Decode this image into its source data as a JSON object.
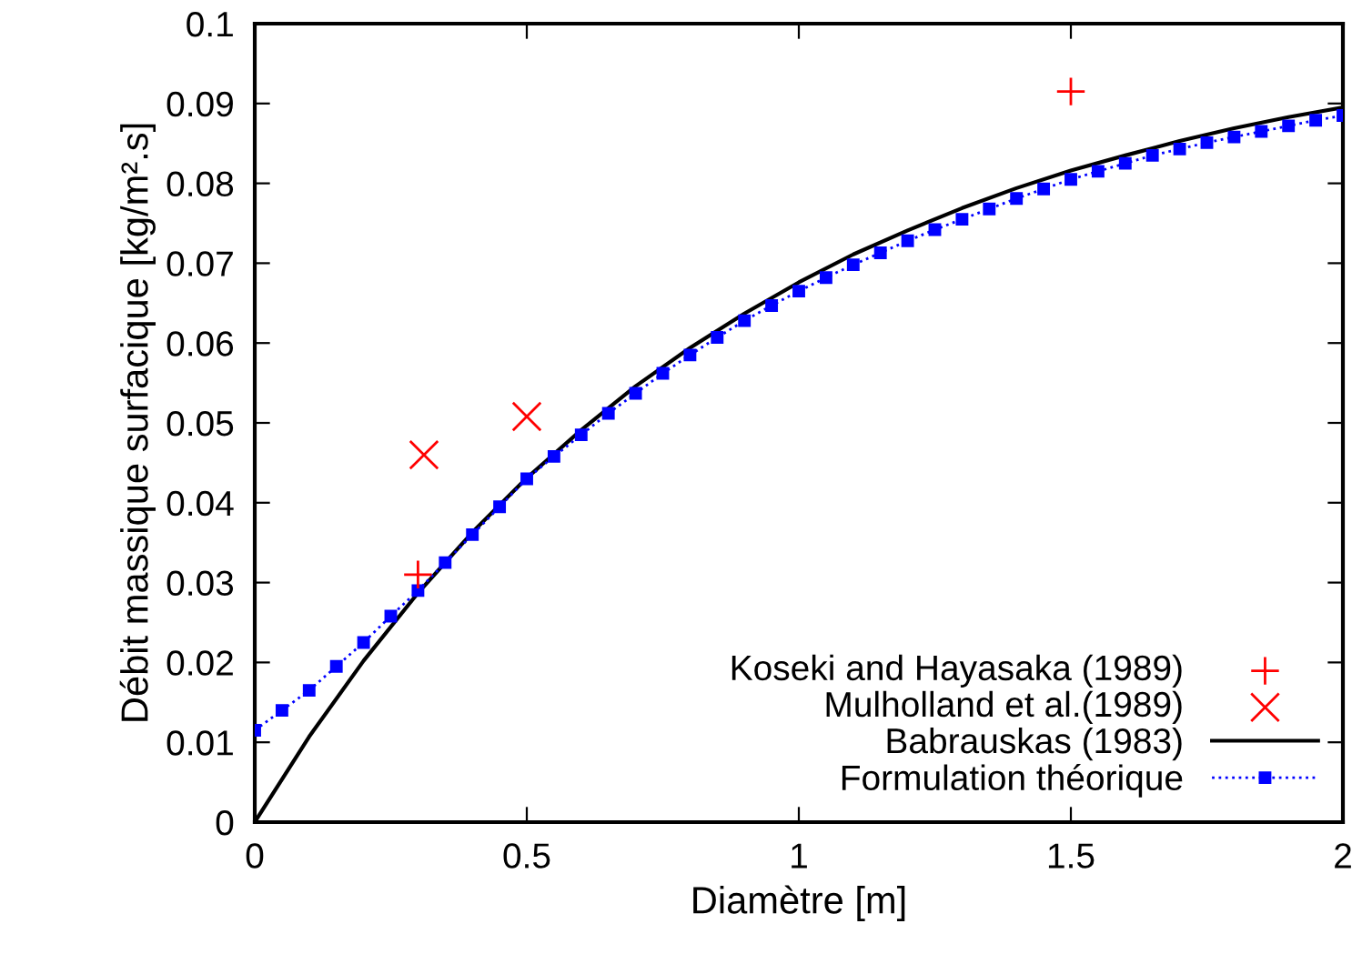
{
  "chart_data": {
    "type": "line",
    "xlabel": "Diamètre [m]",
    "ylabel": "Débit massique surfacique [kg/m².s]",
    "xlim": [
      0,
      2
    ],
    "xticks": [
      0,
      0.5,
      1,
      1.5,
      2
    ],
    "ylim": [
      0,
      0.1
    ],
    "yticks": [
      0,
      0.01,
      0.02,
      0.03,
      0.04,
      0.05,
      0.06,
      0.07,
      0.08,
      0.09,
      0.1
    ],
    "grid": false,
    "legend": "bottom right",
    "series": [
      {
        "name": "Koseki and Hayasaka (1989)",
        "type": "scatter",
        "marker": "plus",
        "color": "#ff0000",
        "x": [
          0.3,
          1.5
        ],
        "values": [
          0.031,
          0.0915
        ]
      },
      {
        "name": "Mulholland et al.(1989)",
        "type": "scatter",
        "marker": "cross",
        "color": "#ff0000",
        "x": [
          0.311,
          0.5
        ],
        "values": [
          0.046,
          0.0508
        ]
      },
      {
        "name": "Babrauskas (1983)",
        "marker": "none",
        "line_style": "solid",
        "color": "#000000",
        "x": [
          0,
          0.1,
          0.2,
          0.3,
          0.4,
          0.5,
          0.6,
          0.7,
          0.8,
          0.9,
          1.0,
          1.1,
          1.2,
          1.3,
          1.4,
          1.5,
          1.6,
          1.7,
          1.8,
          1.9,
          2.0
        ],
        "values": [
          0,
          0.0107,
          0.0202,
          0.0287,
          0.0363,
          0.0431,
          0.0491,
          0.0546,
          0.0594,
          0.0637,
          0.0676,
          0.0711,
          0.0741,
          0.0769,
          0.0794,
          0.0816,
          0.0835,
          0.0853,
          0.0869,
          0.0883,
          0.0895
        ]
      },
      {
        "name": "Formulation théorique",
        "marker": "square",
        "line_style": "dotted",
        "color": "#0000ff",
        "x": [
          0,
          0.05,
          0.1,
          0.15,
          0.2,
          0.25,
          0.3,
          0.35,
          0.4,
          0.45,
          0.5,
          0.55,
          0.6,
          0.65,
          0.7,
          0.75,
          0.8,
          0.85,
          0.9,
          0.95,
          1.0,
          1.05,
          1.1,
          1.15,
          1.2,
          1.25,
          1.3,
          1.35,
          1.4,
          1.45,
          1.5,
          1.55,
          1.6,
          1.65,
          1.7,
          1.75,
          1.8,
          1.85,
          1.9,
          1.95,
          2.0
        ],
        "values": [
          0.0115,
          0.014,
          0.0165,
          0.0195,
          0.0225,
          0.0258,
          0.029,
          0.0325,
          0.036,
          0.0395,
          0.043,
          0.0458,
          0.0485,
          0.0512,
          0.0537,
          0.0562,
          0.0585,
          0.0607,
          0.0628,
          0.0647,
          0.0665,
          0.0682,
          0.0698,
          0.0713,
          0.0728,
          0.0742,
          0.0755,
          0.0768,
          0.0781,
          0.0793,
          0.0805,
          0.0815,
          0.0825,
          0.0835,
          0.0843,
          0.0851,
          0.0858,
          0.0865,
          0.0872,
          0.0879,
          0.0885
        ]
      }
    ]
  }
}
